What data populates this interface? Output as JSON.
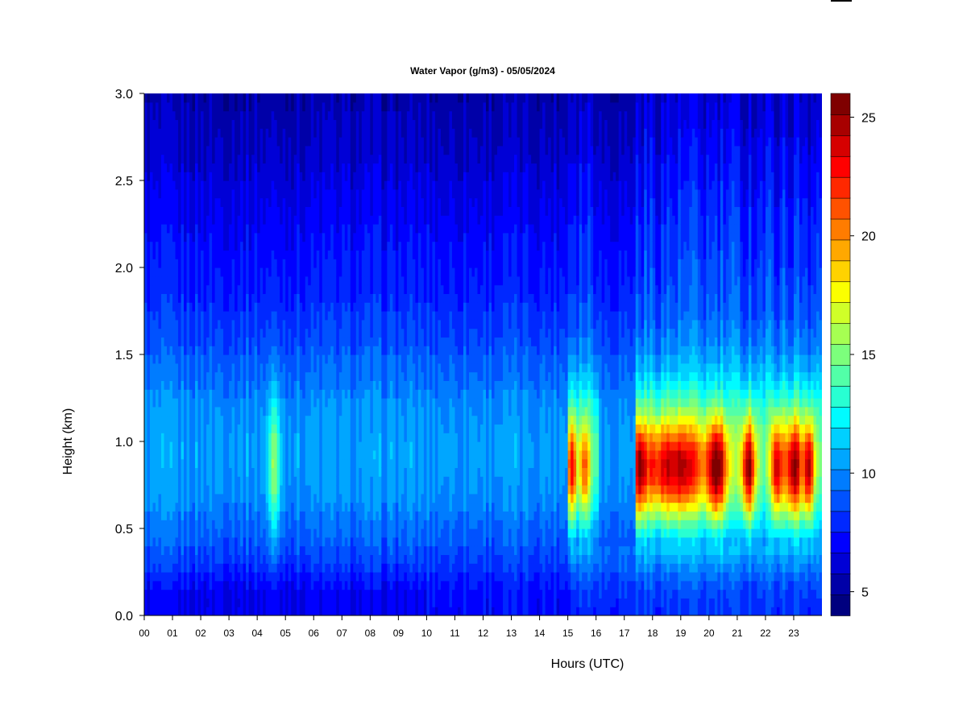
{
  "chart_data": {
    "type": "heatmap",
    "title": "Water Vapor (g/m3) - 05/05/2024",
    "xlabel": "Hours (UTC)",
    "ylabel": "Height (km)",
    "xlim": [
      0,
      24
    ],
    "ylim": [
      0.0,
      3.0
    ],
    "x_ticks": [
      "00",
      "01",
      "02",
      "03",
      "04",
      "05",
      "06",
      "07",
      "08",
      "09",
      "10",
      "11",
      "12",
      "13",
      "14",
      "15",
      "16",
      "17",
      "18",
      "19",
      "20",
      "21",
      "22",
      "23"
    ],
    "y_ticks": [
      "0.0",
      "0.5",
      "1.0",
      "1.5",
      "2.0",
      "2.5",
      "3.0"
    ],
    "colorbar": {
      "range": [
        4,
        26
      ],
      "ticks": [
        "5",
        "10",
        "15",
        "20",
        "25"
      ],
      "tick_values": [
        5,
        10,
        15,
        20,
        25
      ],
      "colors": [
        "#00007f",
        "#0000a8",
        "#0000d6",
        "#0000ff",
        "#0028ff",
        "#0052ff",
        "#007cff",
        "#00a6ff",
        "#00d0ff",
        "#00fbff",
        "#28ffd2",
        "#52ffa8",
        "#7cff7c",
        "#a6ff52",
        "#d0ff28",
        "#fbff00",
        "#ffd200",
        "#ffa800",
        "#ff7c00",
        "#ff5200",
        "#ff2800",
        "#ff0000",
        "#d60000",
        "#a80000",
        "#7f0000"
      ]
    },
    "features": [
      {
        "hour_range": [
          0,
          15
        ],
        "height_km": [
          0.0,
          3.0
        ],
        "value_range": [
          5,
          10
        ],
        "note": "low values throughout, column peaks near 4.6 h around 1 km (~12-13)"
      },
      {
        "hour_range": [
          15,
          16
        ],
        "height_km": [
          0.5,
          1.2
        ],
        "value_range": [
          10,
          21
        ],
        "note": "moist layer"
      },
      {
        "hour_range": [
          17.4,
          23.9
        ],
        "height_km": [
          0.4,
          1.3
        ],
        "value_range": [
          10,
          24
        ],
        "note": "moist layer, peaks near 20.3 h, 21.4 h, 22.4 h, 23 h around 0.85 km"
      }
    ]
  }
}
